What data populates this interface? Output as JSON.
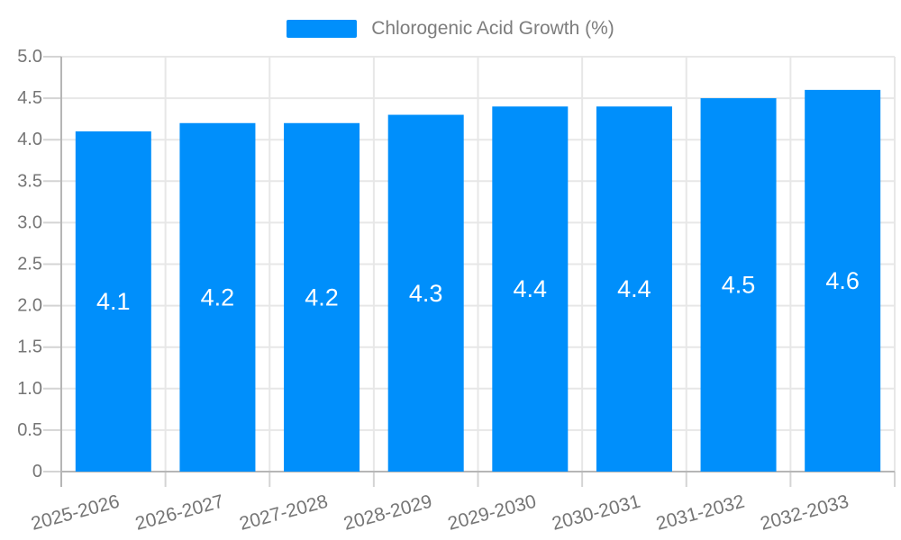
{
  "legend": {
    "label": "Chlorogenic Acid Growth (%)"
  },
  "chart_data": {
    "type": "bar",
    "title": "",
    "xlabel": "",
    "ylabel": "",
    "categories": [
      "2025-2026",
      "2026-2027",
      "2027-2028",
      "2028-2029",
      "2029-2030",
      "2030-2031",
      "2031-2032",
      "2032-2033"
    ],
    "series": [
      {
        "name": "Chlorogenic Acid Growth (%)",
        "values": [
          4.1,
          4.2,
          4.2,
          4.3,
          4.4,
          4.4,
          4.5,
          4.6
        ]
      }
    ],
    "bar_labels": [
      "4.1",
      "4.2",
      "4.2",
      "4.3",
      "4.4",
      "4.4",
      "4.5",
      "4.6"
    ],
    "y_tick_labels": [
      "0",
      "0.5",
      "1.0",
      "1.5",
      "2.0",
      "2.5",
      "3.0",
      "3.5",
      "4.0",
      "4.5",
      "5.0"
    ],
    "ylim": [
      0,
      5
    ],
    "ytick_step": 0.5,
    "grid": true,
    "legend_position": "top",
    "x_label_rotation": -15,
    "colors": {
      "bar": "#008FFB",
      "grid": "#e7e7e7",
      "axis": "#b6b6b6",
      "minor_tick": "#d4d4d4",
      "axis_text": "#757575",
      "bar_label_text": "#ffffff"
    }
  }
}
